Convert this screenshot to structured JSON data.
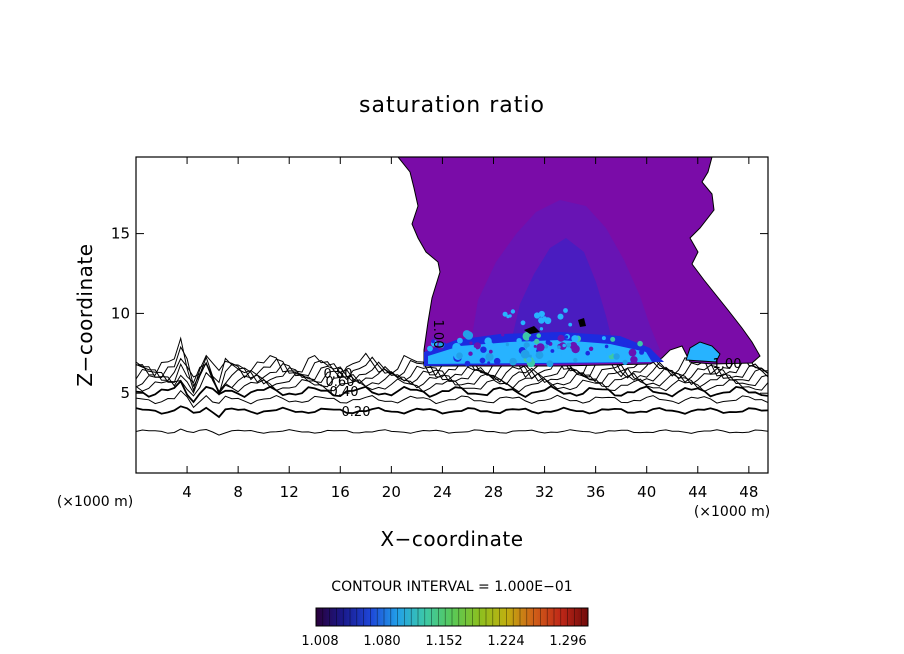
{
  "chart_data": {
    "type": "contour",
    "title": "saturation ratio",
    "xlabel": "X−coordinate",
    "ylabel": "Z−coordinate",
    "x_unit_left": "(×1000 m)",
    "x_unit_right": "(×1000 m)",
    "xlim": [
      0,
      49.5
    ],
    "ylim": [
      0,
      19.8
    ],
    "xticks": [
      4,
      8,
      12,
      16,
      20,
      24,
      28,
      32,
      36,
      40,
      44,
      48
    ],
    "yticks": [
      5,
      10,
      15
    ],
    "contour_interval_text": "CONTOUR INTERVAL = 1.000E−01",
    "contours": [
      {
        "level": 0.2,
        "label": "0.20",
        "z": 3.9
      },
      {
        "level": 0.4,
        "label": "0.40",
        "z": 5.1
      },
      {
        "level": 0.6,
        "label": "0.60",
        "z": 5.8
      },
      {
        "level": 0.8,
        "label": "0.80",
        "z": 6.3
      },
      {
        "level": 1.0,
        "label": "1.00",
        "z": 6.9
      }
    ],
    "shaded_range": [
      1.008,
      1.296
    ],
    "colorbar_ticks": [
      "1.008",
      "1.080",
      "1.152",
      "1.224",
      "1.296"
    ],
    "colors": {
      "cloud_main": "#7a0ca8",
      "cloud_inner": "#6814b4",
      "cloud_core": "#4a1cc0",
      "cloud_base": "#27b3ff",
      "cloud_base_dark": "#1c2be0",
      "colormap": [
        "#2a003a",
        "#1a1a8c",
        "#1e46d8",
        "#22a0e8",
        "#3cc8a8",
        "#58c858",
        "#8cc020",
        "#c0b010",
        "#d06018",
        "#c02818",
        "#700a0a"
      ]
    },
    "grid": false
  }
}
